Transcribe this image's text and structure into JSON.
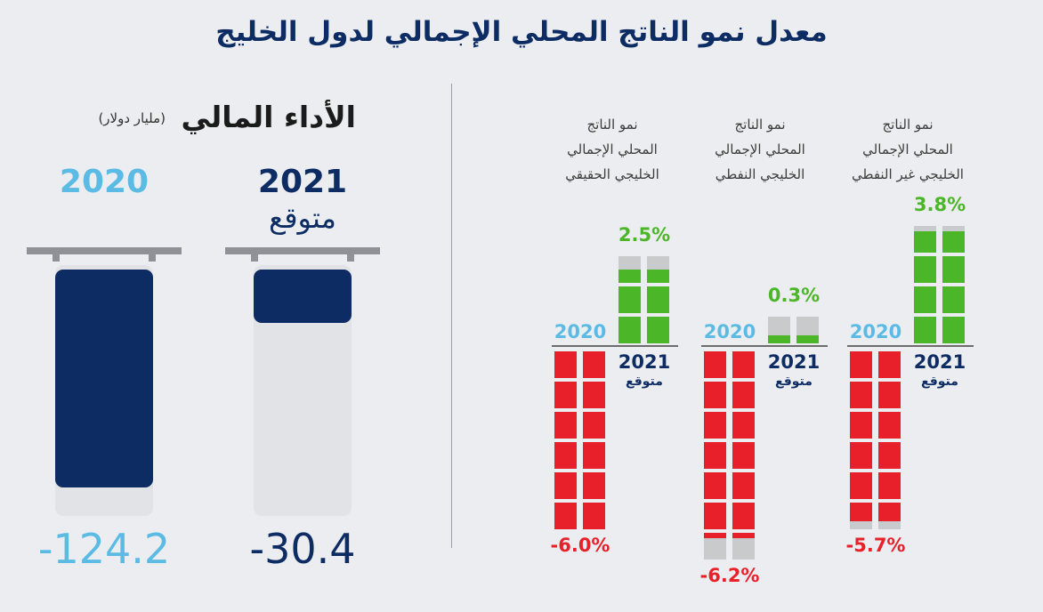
{
  "title": "معدل نمو الناتج المحلي الإجمالي لدول الخليج",
  "financial": {
    "title": "الأداء المالي",
    "unit": "(مليار دولار)",
    "max": 124.2,
    "bars": [
      {
        "year": "2021",
        "sub": "متوقع",
        "value": -30.4,
        "value_text": "-30.4",
        "color": "#0c2c63"
      },
      {
        "year": "2020",
        "sub": "",
        "value": -124.2,
        "value_text": "-124.2",
        "color": "#5bbbe4"
      }
    ]
  },
  "chart_data": {
    "type": "bar",
    "title": "معدل نمو الناتج المحلي الإجمالي لدول الخليج",
    "categories": [
      "نمو الناتج المحلي الإجمالي الخليجي غير النفطي",
      "نمو الناتج المحلي الإجمالي الخليجي النفطي",
      "نمو الناتج المحلي الإجمالي الخليجي الحقيقي"
    ],
    "series": [
      {
        "name": "2020",
        "values": [
          -5.7,
          -6.2,
          -6.0
        ]
      },
      {
        "name": "2021 متوقع",
        "values": [
          3.8,
          0.3,
          2.5
        ]
      }
    ],
    "groups": [
      {
        "label_lines": [
          "نمو الناتج",
          "المحلي الإجمالي",
          "الخليجي غير النفطي"
        ],
        "y2020": -5.7,
        "t2020": "-5.7%",
        "y2021": 3.8,
        "t2021": "3.8%"
      },
      {
        "label_lines": [
          "نمو الناتج",
          "المحلي الإجمالي",
          "الخليجي النفطي"
        ],
        "y2020": -6.2,
        "t2020": "-6.2%",
        "y2021": 0.3,
        "t2021": "0.3%"
      },
      {
        "label_lines": [
          "نمو الناتج",
          "المحلي الإجمالي",
          "الخليجي الحقيقي"
        ],
        "y2020": -6.0,
        "t2020": "-6.0%",
        "y2021": 2.5,
        "t2021": "2.5%"
      }
    ],
    "year_2020_label": "2020",
    "year_2021_label": "2021",
    "year_2021_sub": "متوقع",
    "colors": {
      "positive": "#4bb628",
      "negative": "#e8202a",
      "empty": "#c9cacc",
      "y2020": "#5bbbe4",
      "y2021": "#0c2c63"
    }
  }
}
